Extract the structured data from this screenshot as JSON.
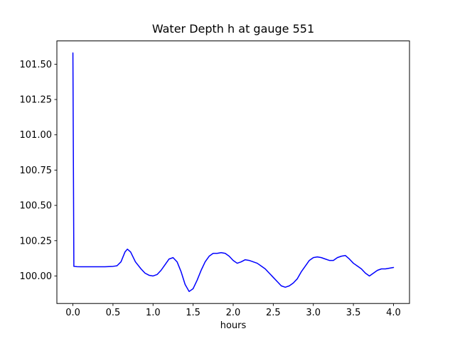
{
  "chart_data": {
    "type": "line",
    "title": "Water Depth h at gauge 551",
    "xlabel": "hours",
    "ylabel": "",
    "grid": false,
    "legend": null,
    "line_color": "#0000ff",
    "xlim": [
      -0.2,
      4.2
    ],
    "ylim": [
      99.805,
      101.665
    ],
    "x_ticks": [
      "0.0",
      "0.5",
      "1.0",
      "1.5",
      "2.0",
      "2.5",
      "3.0",
      "3.5",
      "4.0"
    ],
    "x_tick_values": [
      0,
      0.5,
      1.0,
      1.5,
      2.0,
      2.5,
      3.0,
      3.5,
      4.0
    ],
    "y_ticks": [
      "100.00",
      "100.25",
      "100.50",
      "100.75",
      "101.00",
      "101.25",
      "101.50"
    ],
    "y_tick_values": [
      100.0,
      100.25,
      100.5,
      100.75,
      101.0,
      101.25,
      101.5
    ],
    "series": [
      {
        "name": "water depth h",
        "x": [
          0.0,
          0.012,
          0.05,
          0.1,
          0.2,
          0.3,
          0.4,
          0.5,
          0.55,
          0.6,
          0.65,
          0.68,
          0.72,
          0.78,
          0.85,
          0.9,
          0.95,
          1.0,
          1.05,
          1.1,
          1.15,
          1.2,
          1.25,
          1.3,
          1.35,
          1.4,
          1.45,
          1.5,
          1.55,
          1.6,
          1.65,
          1.7,
          1.75,
          1.8,
          1.85,
          1.9,
          1.95,
          2.0,
          2.05,
          2.1,
          2.15,
          2.2,
          2.25,
          2.3,
          2.35,
          2.4,
          2.45,
          2.5,
          2.55,
          2.6,
          2.65,
          2.7,
          2.75,
          2.8,
          2.85,
          2.9,
          2.95,
          3.0,
          3.05,
          3.1,
          3.15,
          3.2,
          3.25,
          3.3,
          3.35,
          3.4,
          3.45,
          3.5,
          3.55,
          3.6,
          3.65,
          3.7,
          3.75,
          3.8,
          3.85,
          3.9,
          3.95,
          4.0
        ],
        "y": [
          101.58,
          100.068,
          100.066,
          100.065,
          100.065,
          100.065,
          100.065,
          100.068,
          100.072,
          100.1,
          100.17,
          100.19,
          100.17,
          100.1,
          100.05,
          100.02,
          100.005,
          100.0,
          100.01,
          100.04,
          100.08,
          100.12,
          100.13,
          100.1,
          100.03,
          99.94,
          99.89,
          99.91,
          99.97,
          100.04,
          100.1,
          100.14,
          100.16,
          100.16,
          100.165,
          100.16,
          100.14,
          100.11,
          100.09,
          100.1,
          100.115,
          100.11,
          100.1,
          100.09,
          100.07,
          100.05,
          100.02,
          99.99,
          99.96,
          99.93,
          99.92,
          99.93,
          99.95,
          99.98,
          100.03,
          100.07,
          100.11,
          100.13,
          100.135,
          100.13,
          100.12,
          100.11,
          100.11,
          100.13,
          100.14,
          100.145,
          100.12,
          100.09,
          100.07,
          100.05,
          100.02,
          100.0,
          100.02,
          100.04,
          100.05,
          100.05,
          100.055,
          100.06
        ]
      }
    ]
  }
}
